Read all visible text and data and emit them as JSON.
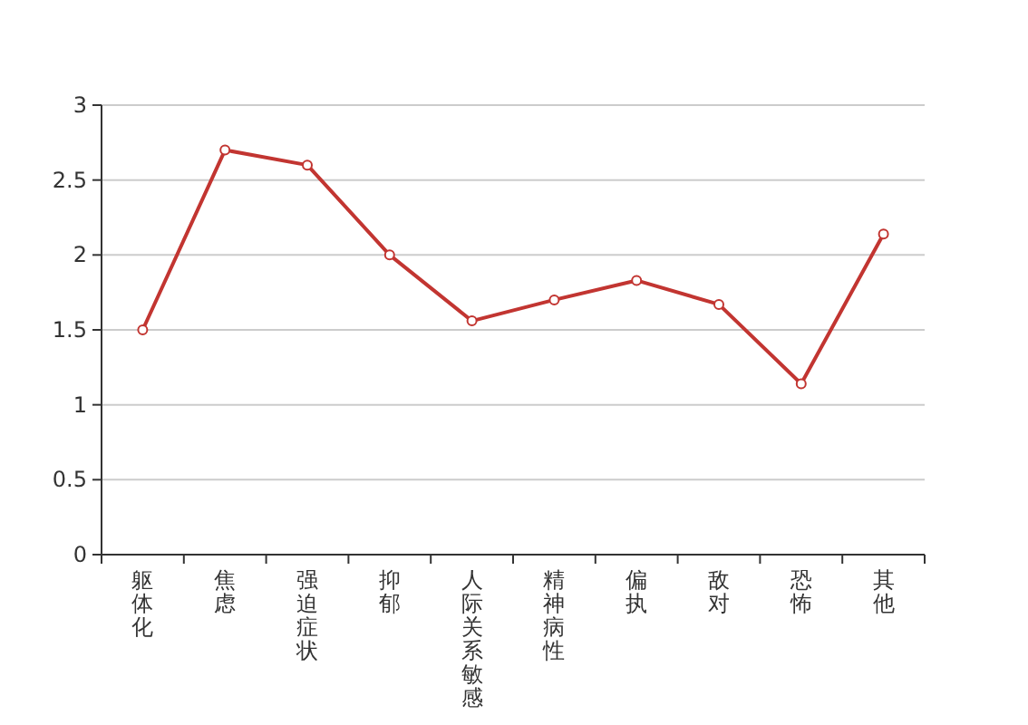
{
  "chart_data": {
    "type": "line",
    "categories": [
      "躯体化",
      "焦虑",
      "强迫症状",
      "抑郁",
      "人际关系敏感",
      "精神病性",
      "偏执",
      "敌对",
      "恐怖",
      "其他"
    ],
    "series": [
      {
        "color": "#c23531",
        "values": [
          1.5,
          2.7,
          2.6,
          2.0,
          1.56,
          1.7,
          1.83,
          1.67,
          1.14,
          2.14
        ]
      }
    ],
    "ylim": [
      0,
      3
    ],
    "yticks": [
      0,
      0.5,
      1,
      1.5,
      2,
      2.5,
      3
    ],
    "grid": "y",
    "marker": "circle"
  }
}
